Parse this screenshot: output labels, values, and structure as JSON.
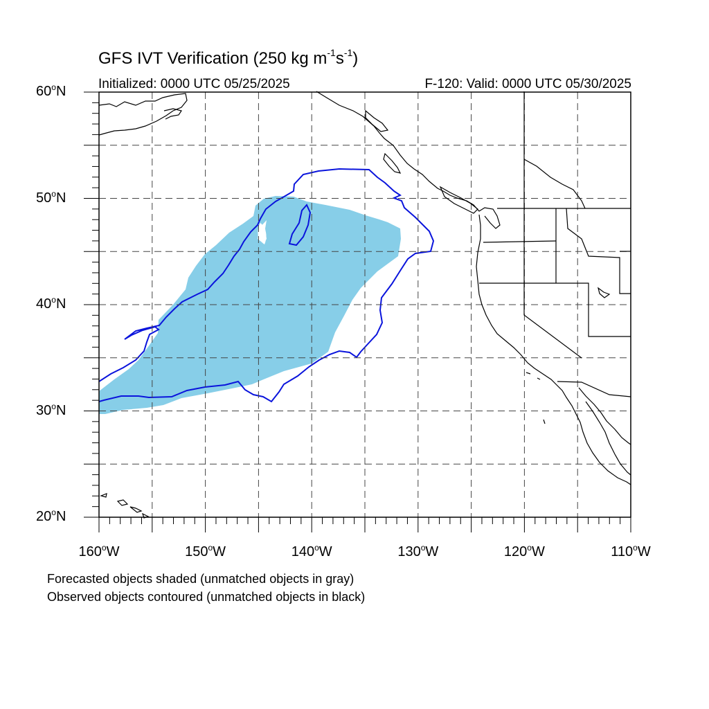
{
  "map": {
    "title_main": "GFS IVT Verification (250 kg m",
    "title_exp1": "-1",
    "title_mid": "s",
    "title_exp2": "-1",
    "title_end": ")",
    "initialized": "Initialized: 0000 UTC 05/25/2025",
    "valid": "F-120: Valid: 0000 UTC 05/30/2025",
    "lat_labels": [
      {
        "value": "60",
        "suffix": "N"
      },
      {
        "value": "50",
        "suffix": "N"
      },
      {
        "value": "40",
        "suffix": "N"
      },
      {
        "value": "30",
        "suffix": "N"
      },
      {
        "value": "20",
        "suffix": "N"
      }
    ],
    "lon_labels": [
      {
        "value": "160",
        "suffix": "W"
      },
      {
        "value": "150",
        "suffix": "W"
      },
      {
        "value": "140",
        "suffix": "W"
      },
      {
        "value": "130",
        "suffix": "W"
      },
      {
        "value": "120",
        "suffix": "W"
      },
      {
        "value": "110",
        "suffix": "W"
      }
    ],
    "note_forecast": "Forecasted objects shaded (unmatched objects in gray)",
    "note_observed": "Observed objects contoured (unmatched objects in black)",
    "extent": {
      "lon_min": -160,
      "lon_max": -110,
      "lat_min": 20,
      "lat_max": 60
    },
    "gridlines": {
      "lon_step": 5,
      "lat_step": 5,
      "style": "dashed"
    },
    "colors": {
      "forecast_fill": "#87CEE8",
      "observed_contour": "#0A14DC",
      "coastline": "#000000",
      "grid": "#444444"
    }
  }
}
